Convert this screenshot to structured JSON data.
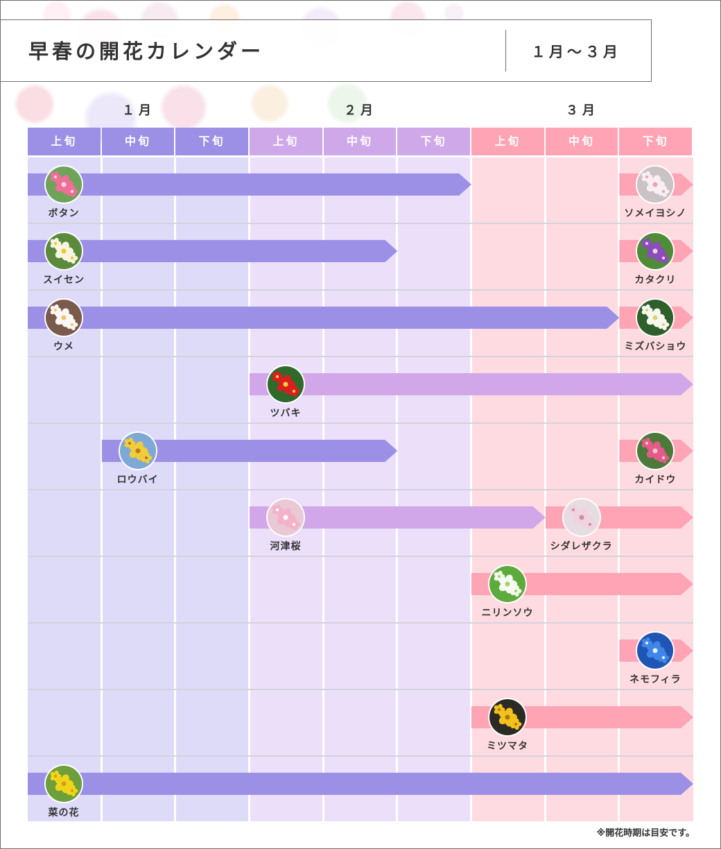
{
  "header": {
    "title": "早春の開花カレンダー",
    "range": "１月～３月"
  },
  "months": [
    {
      "label": "１月",
      "color": "#9b90e6",
      "bg": "#dedbf9"
    },
    {
      "label": "２月",
      "color": "#cfa8ea",
      "bg": "#ecdffa"
    },
    {
      "label": "３月",
      "color": "#fea4b5",
      "bg": "#fedbe0"
    }
  ],
  "periods": [
    "上旬",
    "中旬",
    "下旬",
    "上旬",
    "中旬",
    "下旬",
    "上旬",
    "中旬",
    "下旬"
  ],
  "note": "※開花時期は目安です。",
  "chart_data": {
    "type": "gantt",
    "unit": "旬",
    "rows": [
      {
        "flowers": [
          {
            "name": "ボタン",
            "start": 0,
            "end": 6,
            "color": "#9b90e6",
            "icon": "peony-icon",
            "petal": "#f06e99",
            "center": "#ffd7e3",
            "bgc": "#6fa35a"
          },
          {
            "name": "ソメイヨシノ",
            "start": 8,
            "end": 9,
            "color": "#fea4b5",
            "icon": "cherry-blossom-icon",
            "petal": "#f9eef2",
            "center": "#e9a3b6",
            "bgc": "#c9c3c6"
          }
        ]
      },
      {
        "flowers": [
          {
            "name": "スイセン",
            "start": 0,
            "end": 5,
            "color": "#9b90e6",
            "icon": "narcissus-icon",
            "petal": "#f8f5df",
            "center": "#f2c52c",
            "bgc": "#5a8a3c"
          },
          {
            "name": "カタクリ",
            "start": 8,
            "end": 9,
            "color": "#fea4b5",
            "icon": "dogtooth-violet-icon",
            "petal": "#8e4cb8",
            "center": "#e9d6f4",
            "bgc": "#4e8c38"
          }
        ]
      },
      {
        "flowers": [
          {
            "name": "ウメ",
            "start": 0,
            "end": 8,
            "color": "#9b90e6",
            "icon": "plum-blossom-icon",
            "petal": "#fbf7f7",
            "center": "#f1c36a",
            "bgc": "#7a5a4a"
          },
          {
            "name": "ミズバショウ",
            "start": 8,
            "end": 9,
            "color": "#fea4b5",
            "icon": "skunk-cabbage-icon",
            "petal": "#f6f8ef",
            "center": "#d8d27a",
            "bgc": "#2f5f2a"
          }
        ]
      },
      {
        "flowers": [
          {
            "name": "ツバキ",
            "start": 3,
            "end": 9,
            "color": "#d1a7ea",
            "icon": "camellia-icon",
            "petal": "#d91f1f",
            "center": "#f7d03a",
            "bgc": "#2e6a2a"
          }
        ]
      },
      {
        "flowers": [
          {
            "name": "ロウバイ",
            "start": 1,
            "end": 5,
            "color": "#9b90e6",
            "icon": "wintersweet-icon",
            "petal": "#f1cc3a",
            "center": "#b07c1c",
            "bgc": "#7ea8d6"
          },
          {
            "name": "カイドウ",
            "start": 8,
            "end": 9,
            "color": "#fea4b5",
            "icon": "crabapple-icon",
            "petal": "#e35b86",
            "center": "#f8c5d6",
            "bgc": "#4b7a3a"
          }
        ]
      },
      {
        "flowers": [
          {
            "name": "河津桜",
            "start": 3,
            "end": 7,
            "color": "#d1a7ea",
            "icon": "kawazu-cherry-icon",
            "petal": "#f4b2c8",
            "center": "#ffffff",
            "bgc": "#e9c9d5"
          },
          {
            "name": "シダレザクラ",
            "start": 7,
            "end": 9,
            "color": "#fea4b5",
            "icon": "weeping-cherry-icon",
            "petal": "#f1d2de",
            "center": "#c98fa6",
            "bgc": "#e6dde3"
          }
        ]
      },
      {
        "flowers": [
          {
            "name": "ニリンソウ",
            "start": 6,
            "end": 9,
            "color": "#fea4b5",
            "icon": "anemone-icon",
            "petal": "#f5fbf0",
            "center": "#a7d36b",
            "bgc": "#5cab3c"
          }
        ]
      },
      {
        "flowers": [
          {
            "name": "ネモフィラ",
            "start": 8,
            "end": 9,
            "color": "#fea4b5",
            "icon": "nemophila-icon",
            "petal": "#3f86e6",
            "center": "#e8f2ff",
            "bgc": "#1f55b5"
          }
        ]
      },
      {
        "flowers": [
          {
            "name": "ミツマタ",
            "start": 6,
            "end": 9,
            "color": "#fea4b5",
            "icon": "mitsumata-icon",
            "petal": "#f3c11c",
            "center": "#a6781a",
            "bgc": "#2c2a25"
          }
        ]
      },
      {
        "flowers": [
          {
            "name": "菜の花",
            "start": 0,
            "end": 9,
            "color": "#9b90e6",
            "icon": "rapeseed-icon",
            "petal": "#f2d31c",
            "center": "#c9a60c",
            "bgc": "#6d9f3a"
          }
        ]
      }
    ]
  }
}
